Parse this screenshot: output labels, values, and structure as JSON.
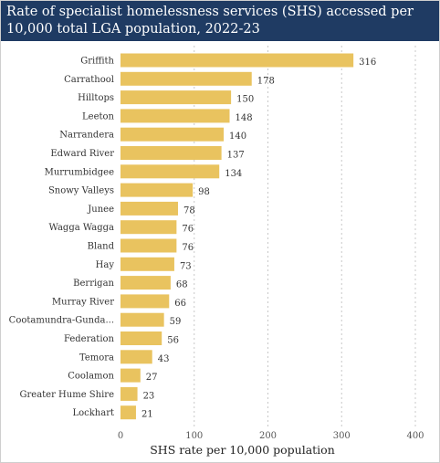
{
  "chart_data": {
    "type": "bar",
    "orientation": "horizontal",
    "title": "Rate of specialist homelessness services (SHS) accessed per 10,000 total LGA population, 2022-23",
    "xlabel": "SHS rate per 10,000 population",
    "ylabel": "",
    "xlim": [
      0,
      400
    ],
    "xticks": [
      0,
      100,
      200,
      300,
      400
    ],
    "grid": "vertical dotted",
    "legend": "none",
    "bar_color": "#e9c35f",
    "categories": [
      "Griffith",
      "Carrathool",
      "Hilltops",
      "Leeton",
      "Narrandera",
      "Edward River",
      "Murrumbidgee",
      "Snowy Valleys",
      "Junee",
      "Wagga Wagga",
      "Bland",
      "Hay",
      "Berrigan",
      "Murray River",
      "Cootamundra-Gunda...",
      "Federation",
      "Temora",
      "Coolamon",
      "Greater Hume Shire",
      "Lockhart"
    ],
    "values": [
      316,
      178,
      150,
      148,
      140,
      137,
      134,
      98,
      78,
      76,
      76,
      73,
      68,
      66,
      59,
      56,
      43,
      27,
      23,
      21
    ]
  }
}
